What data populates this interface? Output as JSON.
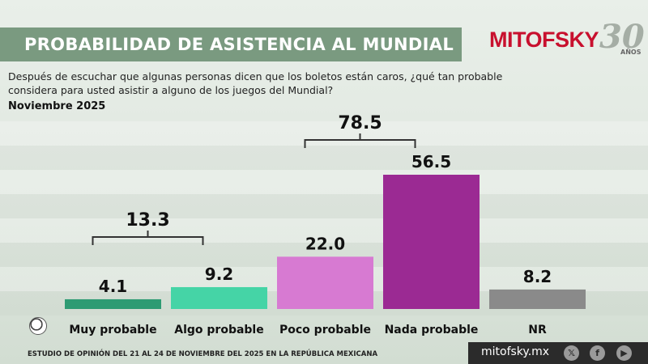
{
  "header": {
    "title": "PROBABILIDAD DE ASISTENCIA AL MUNDIAL",
    "logo_text": "MITOFSKY",
    "logo_anniversary": "30",
    "logo_anniversary_sub": "AÑOS"
  },
  "question": "Después de escuchar que algunas personas dicen que los boletos están caros, ¿qué tan probable considera para usted asistir a alguno de los juegos del Mundial?",
  "date": "Noviembre 2025",
  "footer": {
    "note": "ESTUDIO DE OPINIÓN DEL 21 AL 24 DE NOVIEMBRE DEL 2025 EN LA REPÚBLICA MEXICANA",
    "url": "mitofsky.mx",
    "social_icons": [
      "x-icon",
      "facebook-icon",
      "youtube-icon"
    ]
  },
  "chart_data": {
    "type": "bar",
    "title": "",
    "xlabel": "",
    "ylabel": "",
    "categories": [
      "Muy probable",
      "Algo probable",
      "Poco probable",
      "Nada probable",
      "NR"
    ],
    "values": [
      4.1,
      9.2,
      22.0,
      56.5,
      8.2
    ],
    "value_labels": [
      "4.1",
      "9.2",
      "22.0",
      "56.5",
      "8.2"
    ],
    "colors": [
      "#2e9b73",
      "#45d4a6",
      "#d77ad2",
      "#9b2a93",
      "#8a8a8a"
    ],
    "ylim": [
      0,
      60
    ],
    "grid": false,
    "group_annotations": [
      {
        "label": "13.3",
        "categories": [
          "Muy probable",
          "Algo probable"
        ]
      },
      {
        "label": "78.5",
        "categories": [
          "Poco probable",
          "Nada probable"
        ]
      }
    ]
  }
}
